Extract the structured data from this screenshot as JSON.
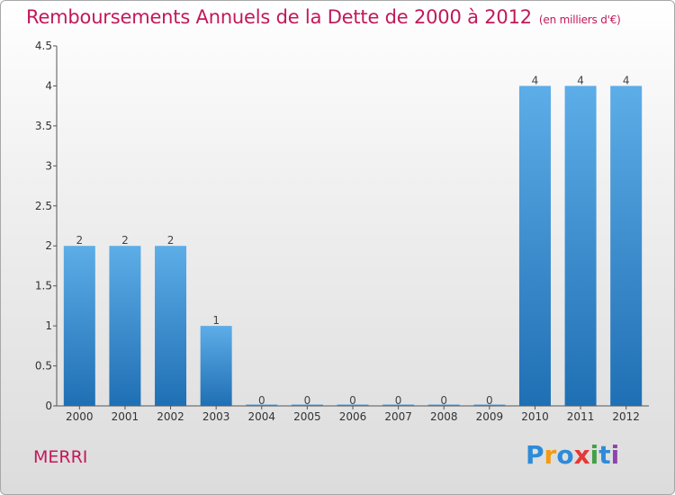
{
  "page": {
    "title": "Remboursements Annuels de la Dette de 2000 à 2012",
    "subtitle": "(en milliers d'€)",
    "commune": "MERRI",
    "logo": {
      "letters": [
        "P",
        "r",
        "o",
        "x",
        "i",
        "t",
        "i"
      ],
      "colors": [
        "#2e8bd8",
        "#f39c12",
        "#2e8bd8",
        "#e53935",
        "#43a047",
        "#2e8bd8",
        "#8e44ad"
      ]
    }
  },
  "chart_data": {
    "type": "bar",
    "title": "Remboursements Annuels de la Dette de 2000 à 2012",
    "subtitle": "(en milliers d'€)",
    "categories": [
      "2000",
      "2001",
      "2002",
      "2003",
      "2004",
      "2005",
      "2006",
      "2007",
      "2008",
      "2009",
      "2010",
      "2011",
      "2012"
    ],
    "values": [
      2,
      2,
      2,
      1,
      0,
      0,
      0,
      0,
      0,
      0,
      4,
      4,
      4
    ],
    "data_labels": [
      "2",
      "2",
      "2",
      "1",
      "0",
      "0",
      "0",
      "0",
      "0",
      "0",
      "4",
      "4",
      "4"
    ],
    "yticks": [
      0,
      0.5,
      1,
      1.5,
      2,
      2.5,
      3,
      3.5,
      4,
      4.5
    ],
    "ytick_labels": [
      "0",
      "0.5",
      "1",
      "1.5",
      "2",
      "2.5",
      "3",
      "3.5",
      "4",
      "4.5"
    ],
    "ylim": [
      0,
      4.5
    ],
    "xlabel": "",
    "ylabel": "",
    "grid": false,
    "legend": "none",
    "colors": {
      "bar_top": "#5dade8",
      "bar_bottom": "#1f6fb4",
      "axis": "#555555",
      "title": "#c2185b"
    }
  }
}
